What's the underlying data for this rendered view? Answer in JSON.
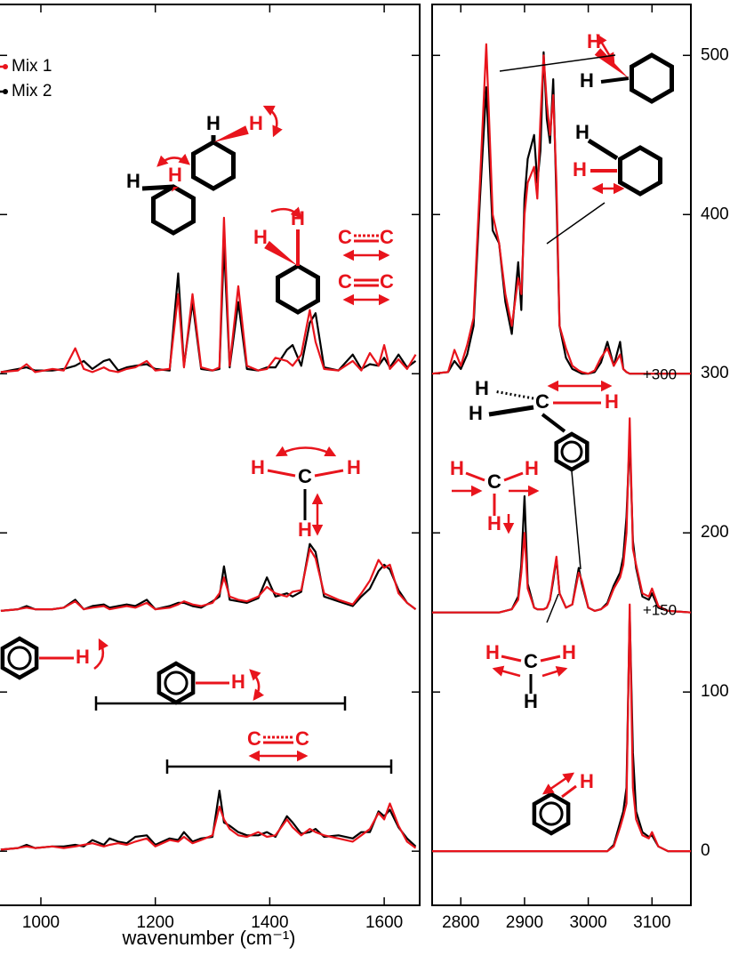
{
  "chart_data": [
    {
      "type": "line",
      "x": [
        930,
        960,
        975,
        990,
        1020,
        1040,
        1060,
        1075,
        1090,
        1110,
        1120,
        1135,
        1150,
        1165,
        1185,
        1200,
        1225,
        1240,
        1250,
        1265,
        1280,
        1300,
        1312,
        1320,
        1330,
        1345,
        1360,
        1380,
        1395,
        1410,
        1430,
        1440,
        1455,
        1470,
        1480,
        1495,
        1520,
        1545,
        1560,
        1575,
        1590,
        1600,
        1610,
        1625,
        1640,
        1655
      ],
      "xlim": [
        927,
        1662
      ],
      "xticks": [
        1000,
        1200,
        1400,
        1600
      ],
      "ylim": [
        -34,
        532
      ],
      "xlabel": "wavenumber (cm⁻¹)",
      "series": [
        {
          "name": "Mix 1",
          "color": "#e8141c",
          "values": [
            301,
            302,
            306,
            301,
            303,
            302,
            316,
            303,
            301,
            304,
            302,
            301,
            303,
            304,
            308,
            302,
            303,
            350,
            304,
            350,
            304,
            302,
            304,
            398,
            305,
            355,
            305,
            302,
            303,
            310,
            308,
            305,
            312,
            340,
            320,
            303,
            302,
            308,
            302,
            313,
            305,
            318,
            303,
            309,
            303,
            312
          ]
        },
        {
          "name": "Mix 2",
          "color": "#000000",
          "values": [
            301,
            303,
            304,
            302,
            302,
            303,
            305,
            308,
            303,
            308,
            309,
            302,
            304,
            305,
            306,
            303,
            302,
            363,
            305,
            345,
            303,
            302,
            303,
            381,
            304,
            345,
            303,
            302,
            304,
            304,
            315,
            318,
            305,
            332,
            338,
            304,
            302,
            312,
            303,
            306,
            305,
            310,
            304,
            312,
            304,
            308
          ]
        },
        {
          "name": "Mix 1",
          "color": "#e8141c",
          "values": [
            151,
            152,
            153,
            152,
            152,
            153,
            157,
            152,
            153,
            154,
            152,
            153,
            154,
            153,
            156,
            152,
            153,
            155,
            157,
            155,
            154,
            156,
            162,
            172,
            160,
            158,
            157,
            160,
            166,
            162,
            160,
            163,
            164,
            190,
            184,
            162,
            158,
            155,
            162,
            170,
            183,
            178,
            180,
            162,
            156,
            152
          ]
        },
        {
          "name": "Mix 2",
          "color": "#000000",
          "values": [
            151,
            152,
            154,
            152,
            152,
            153,
            158,
            152,
            154,
            155,
            153,
            154,
            155,
            154,
            158,
            152,
            154,
            156,
            156,
            154,
            153,
            157,
            160,
            179,
            158,
            157,
            156,
            159,
            172,
            160,
            162,
            160,
            163,
            193,
            188,
            160,
            157,
            154,
            160,
            165,
            176,
            180,
            177,
            164,
            156,
            152
          ]
        },
        {
          "name": "Mix 1",
          "color": "#e8141c",
          "values": [
            1,
            2,
            3,
            2,
            3,
            2,
            3,
            4,
            5,
            3,
            4,
            5,
            4,
            6,
            8,
            3,
            7,
            6,
            9,
            5,
            7,
            10,
            28,
            20,
            14,
            10,
            9,
            12,
            9,
            10,
            20,
            15,
            10,
            14,
            12,
            10,
            8,
            6,
            10,
            14,
            24,
            20,
            30,
            16,
            6,
            2
          ]
        },
        {
          "name": "Mix 2",
          "color": "#000000",
          "values": [
            1,
            2,
            4,
            2,
            3,
            3,
            4,
            3,
            7,
            4,
            8,
            6,
            5,
            9,
            10,
            4,
            8,
            7,
            12,
            6,
            8,
            9,
            38,
            18,
            16,
            12,
            10,
            10,
            12,
            9,
            22,
            18,
            11,
            12,
            14,
            9,
            10,
            8,
            12,
            12,
            25,
            22,
            26,
            15,
            8,
            3
          ]
        }
      ],
      "annotations": [
        {
          "text": "H",
          "color": "#000000"
        },
        {
          "text": "H",
          "color": "#e8141c"
        },
        {
          "text": "H",
          "color": "#000000"
        },
        {
          "text": "H",
          "color": "#e8141c"
        },
        {
          "text": "H",
          "color": "#e8141c"
        },
        {
          "text": "H",
          "color": "#e8141c"
        },
        {
          "text": "C",
          "color": "#e8141c"
        },
        {
          "text": "C",
          "color": "#e8141c"
        },
        {
          "text": "C",
          "color": "#e8141c"
        },
        {
          "text": "C",
          "color": "#e8141c"
        },
        {
          "text": "H",
          "color": "#e8141c"
        },
        {
          "text": "C",
          "color": "#000000"
        },
        {
          "text": "H",
          "color": "#e8141c"
        },
        {
          "text": "H",
          "color": "#e8141c"
        },
        {
          "text": "H",
          "color": "#e8141c"
        },
        {
          "text": "H",
          "color": "#e8141c"
        },
        {
          "text": "C",
          "color": "#e8141c"
        },
        {
          "text": "C",
          "color": "#e8141c"
        }
      ]
    },
    {
      "type": "line",
      "x": [
        2755,
        2780,
        2790,
        2800,
        2810,
        2820,
        2830,
        2840,
        2850,
        2860,
        2870,
        2880,
        2890,
        2895,
        2900,
        2905,
        2915,
        2920,
        2925,
        2930,
        2935,
        2940,
        2945,
        2950,
        2955,
        2965,
        2975,
        2985,
        2990,
        3000,
        3010,
        3020,
        3030,
        3040,
        3050,
        3055,
        3060,
        3065,
        3070,
        3075,
        3085,
        3095,
        3100,
        3110,
        3125,
        3161
      ],
      "xlim": [
        2755,
        3161
      ],
      "xticks": [
        2800,
        2900,
        3000,
        3100
      ],
      "ylim": [
        -34,
        532
      ],
      "yticks": [
        0,
        100,
        200,
        300,
        400,
        500
      ],
      "series": [
        {
          "name": "Mix 1",
          "color": "#e8141c",
          "values": [
            300,
            301,
            315,
            305,
            318,
            335,
            420,
            507,
            400,
            382,
            350,
            330,
            360,
            350,
            400,
            420,
            430,
            410,
            460,
            500,
            470,
            450,
            475,
            420,
            330,
            316,
            305,
            302,
            301,
            300,
            302,
            310,
            316,
            305,
            312,
            303,
            301,
            300,
            300,
            300,
            300,
            300,
            300,
            300,
            300,
            300
          ]
        },
        {
          "name": "Mix 2",
          "color": "#000000",
          "values": [
            300,
            301,
            308,
            303,
            312,
            330,
            410,
            480,
            390,
            382,
            345,
            325,
            370,
            340,
            410,
            435,
            450,
            420,
            440,
            502,
            460,
            445,
            485,
            410,
            330,
            310,
            303,
            301,
            300,
            300,
            301,
            307,
            320,
            305,
            320,
            303,
            301,
            300,
            300,
            300,
            300,
            300,
            300,
            300,
            300,
            300
          ]
        },
        {
          "name": "Mix 1",
          "color": "#e8141c",
          "values": [
            150,
            150,
            150,
            150,
            150,
            150,
            150,
            150,
            150,
            150,
            151,
            152,
            158,
            175,
            200,
            165,
            153,
            152,
            152,
            152,
            153,
            158,
            172,
            185,
            162,
            153,
            155,
            175,
            170,
            153,
            151,
            152,
            155,
            165,
            172,
            180,
            200,
            272,
            190,
            180,
            162,
            160,
            165,
            154,
            151,
            150
          ]
        },
        {
          "name": "Mix 2",
          "color": "#000000",
          "values": [
            150,
            150,
            150,
            150,
            150,
            150,
            150,
            150,
            150,
            150,
            151,
            152,
            160,
            180,
            223,
            168,
            153,
            152,
            152,
            152,
            153,
            158,
            170,
            184,
            162,
            153,
            155,
            178,
            168,
            153,
            151,
            152,
            156,
            167,
            175,
            185,
            210,
            260,
            195,
            178,
            160,
            158,
            162,
            153,
            151,
            150
          ]
        },
        {
          "name": "Mix 1",
          "color": "#e8141c",
          "values": [
            0,
            0,
            0,
            0,
            0,
            0,
            0,
            0,
            0,
            0,
            0,
            0,
            0,
            0,
            0,
            0,
            0,
            0,
            0,
            0,
            0,
            0,
            0,
            0,
            0,
            0,
            0,
            0,
            0,
            0,
            0,
            0,
            0,
            3,
            15,
            22,
            30,
            155,
            40,
            20,
            10,
            8,
            12,
            3,
            0,
            0
          ]
        },
        {
          "name": "Mix 2",
          "color": "#000000",
          "values": [
            0,
            0,
            0,
            0,
            0,
            0,
            0,
            0,
            0,
            0,
            0,
            0,
            0,
            0,
            0,
            0,
            0,
            0,
            0,
            0,
            0,
            0,
            0,
            0,
            0,
            0,
            0,
            0,
            0,
            0,
            0,
            0,
            0,
            4,
            18,
            25,
            40,
            150,
            62,
            25,
            12,
            9,
            10,
            3,
            0,
            0
          ]
        }
      ],
      "annotations": [
        {
          "text": "H",
          "color": "#e8141c"
        },
        {
          "text": "H",
          "color": "#000000"
        },
        {
          "text": "H",
          "color": "#000000"
        },
        {
          "text": "H",
          "color": "#e8141c"
        },
        {
          "text": "H",
          "color": "#000000"
        },
        {
          "text": "H",
          "color": "#000000"
        },
        {
          "text": "C",
          "color": "#000000"
        },
        {
          "text": "H",
          "color": "#e8141c"
        },
        {
          "text": "H",
          "color": "#e8141c"
        },
        {
          "text": "C",
          "color": "#000000"
        },
        {
          "text": "H",
          "color": "#e8141c"
        },
        {
          "text": "H",
          "color": "#e8141c"
        },
        {
          "text": "H",
          "color": "#e8141c"
        },
        {
          "text": "C",
          "color": "#000000"
        },
        {
          "text": "H",
          "color": "#e8141c"
        },
        {
          "text": "H",
          "color": "#000000"
        },
        {
          "text": "H",
          "color": "#e8141c"
        },
        {
          "text": "+300",
          "color": "#000000"
        },
        {
          "text": "+150",
          "color": "#000000"
        }
      ]
    }
  ]
}
